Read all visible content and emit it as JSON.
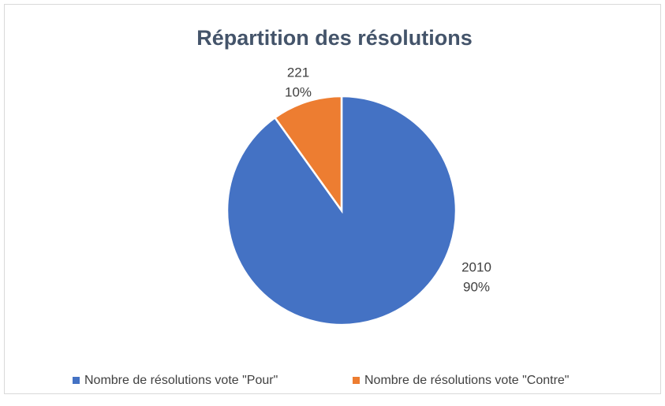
{
  "chart_data": {
    "type": "pie",
    "title": "Répartition des résolutions",
    "categories": [
      "Nombre de résolutions vote \"Pour\"",
      "Nombre de résolutions vote \"Contre\""
    ],
    "values": [
      2010,
      221
    ],
    "percentages": [
      90,
      10
    ],
    "percentage_labels": [
      "90%",
      "10%"
    ],
    "colors": [
      "#4472c4",
      "#ed7d31"
    ],
    "legend": "bottom"
  }
}
